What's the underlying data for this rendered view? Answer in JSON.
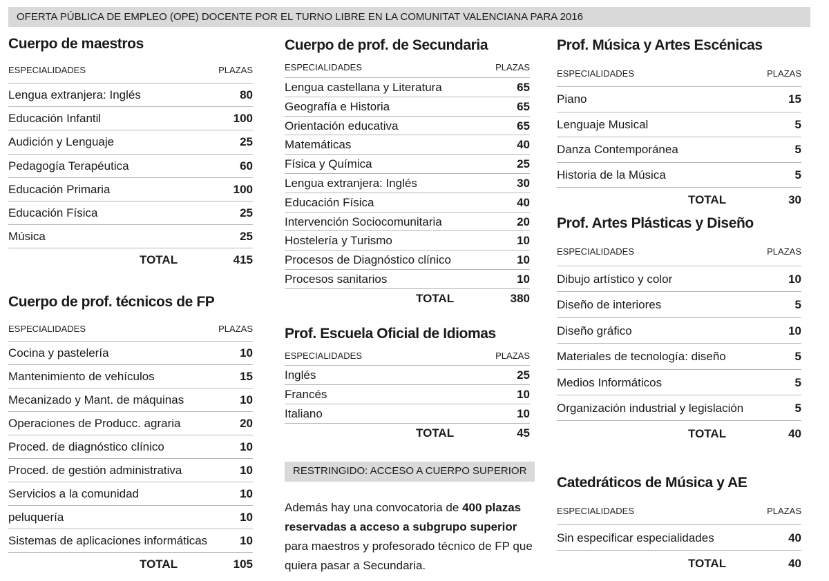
{
  "header": {
    "title": "OFERTA PÚBLICA DE EMPLEO (OPE) DOCENTE POR EL TURNO LIBRE EN LA COMUNITAT VALENCIANA PARA 2016"
  },
  "tables": [
    {
      "title": "Cuerpo de maestros",
      "col_labels": [
        "ESPECIALIDADES",
        "PLAZAS"
      ],
      "rows": [
        [
          "Lengua extranjera: Inglés",
          80
        ],
        [
          "Educación Infantil",
          100
        ],
        [
          "Audición y Lenguaje",
          25
        ],
        [
          "Pedagogía Terapéutica",
          60
        ],
        [
          "Educación Primaria",
          100
        ],
        [
          "Educación Física",
          25
        ],
        [
          "Música",
          25
        ]
      ],
      "total_label": "TOTAL",
      "total": 415
    },
    {
      "title": "Cuerpo de prof. técnicos de FP",
      "col_labels": [
        "ESPECIALIDADES",
        "PLAZAS"
      ],
      "rows": [
        [
          "Cocina y pastelería",
          10
        ],
        [
          "Mantenimiento de vehículos",
          15
        ],
        [
          "Mecanizado y Mant. de máquinas",
          10
        ],
        [
          "Operaciones de Producc. agraria",
          20
        ],
        [
          "Proced. de diagnóstico clínico",
          10
        ],
        [
          "Proced. de gestión administrativa",
          10
        ],
        [
          "Servicios a la comunidad",
          10
        ],
        [
          "peluquería",
          10
        ],
        [
          "Sistemas de aplicaciones informáticas",
          10
        ]
      ],
      "total_label": "TOTAL",
      "total": 105
    },
    {
      "title": "Cuerpo de prof. de Secundaria",
      "col_labels": [
        "ESPECIALIDADES",
        "PLAZAS"
      ],
      "rows": [
        [
          "Lengua castellana y Literatura",
          65
        ],
        [
          "Geografía e Historia",
          65
        ],
        [
          "Orientación educativa",
          65
        ],
        [
          "Matemáticas",
          40
        ],
        [
          "Física y Química",
          25
        ],
        [
          "Lengua extranjera: Inglés",
          30
        ],
        [
          "Educación Física",
          40
        ],
        [
          "Intervención Sociocomunitaria",
          20
        ],
        [
          "Hostelería y Turismo",
          10
        ],
        [
          "Procesos de Diagnóstico clínico",
          10
        ],
        [
          "Procesos sanitarios",
          10
        ]
      ],
      "total_label": "TOTAL",
      "total": 380
    },
    {
      "title": "Prof. Escuela Oficial de Idiomas",
      "col_labels": [
        "ESPECIALIDADES",
        "PLAZAS"
      ],
      "rows": [
        [
          "Inglés",
          25
        ],
        [
          "Francés",
          10
        ],
        [
          "Italiano",
          10
        ]
      ],
      "total_label": "TOTAL",
      "total": 45
    },
    {
      "title": "Prof. Música y Artes Escénicas",
      "col_labels": [
        "ESPECIALIDADES",
        "PLAZAS"
      ],
      "rows": [
        [
          "Piano",
          15
        ],
        [
          "Lenguaje Musical",
          5
        ],
        [
          "Danza Contemporánea",
          5
        ],
        [
          "Historia de la Música",
          5
        ]
      ],
      "total_label": "TOTAL",
      "total": 30
    },
    {
      "title": "Prof. Artes Plásticas y Diseño",
      "col_labels": [
        "ESPECIALIDADES",
        "PLAZAS"
      ],
      "rows": [
        [
          "Dibujo artístico y color",
          10
        ],
        [
          "Diseño de interiores",
          5
        ],
        [
          "Diseño gráfico",
          10
        ],
        [
          "Materiales de tecnología: diseño",
          5
        ],
        [
          "Medios Informáticos",
          5
        ],
        [
          "Organización industrial y legislación",
          5
        ]
      ],
      "total_label": "TOTAL",
      "total": 40
    },
    {
      "title": "Catedráticos de Música y AE",
      "col_labels": [
        "ESPECIALIDADES",
        "PLAZAS"
      ],
      "rows": [
        [
          "Sin especificar especialidades",
          40
        ]
      ],
      "total_label": "TOTAL",
      "total": 40
    }
  ],
  "notice": {
    "title": "RESTRINGIDO: ACCESO A CUERPO SUPERIOR",
    "segments": [
      {
        "text": "Además hay una convocatoria de ",
        "bold": false
      },
      {
        "text": "400 plazas reservadas a acceso a subgrupo superior",
        "bold": true
      },
      {
        "text": " para maestros y profesorado técnico de FP que quiera pasar a Secundaria.",
        "bold": false
      }
    ]
  }
}
